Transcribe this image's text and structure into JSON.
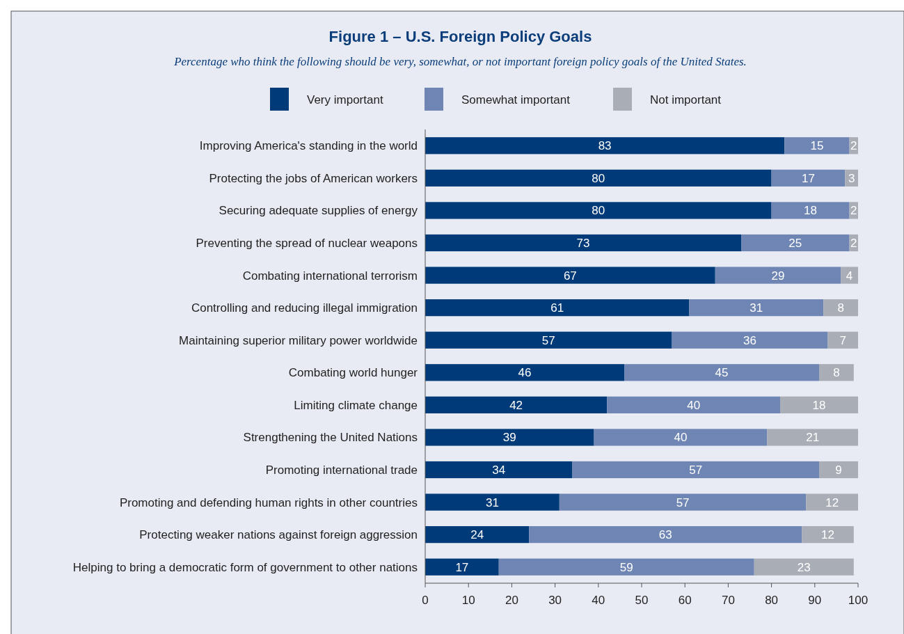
{
  "chart_data": {
    "type": "bar",
    "orientation": "horizontal",
    "stacked": true,
    "title": "Figure 1 – U.S. Foreign Policy Goals",
    "subtitle": "Percentage who think the following should be very, somewhat, or not important foreign policy goals of the United States.",
    "categories": [
      "Improving America's standing in the world",
      "Protecting the jobs of American workers",
      "Securing adequate supplies of energy",
      "Preventing the spread of nuclear weapons",
      "Combating international terrorism",
      "Controlling and reducing illegal immigration",
      "Maintaining superior military power worldwide",
      "Combating world hunger",
      "Limiting climate change",
      "Strengthening the United Nations",
      "Promoting international trade",
      "Promoting and defending human rights in other countries",
      "Protecting weaker nations against foreign aggression",
      "Helping to bring a democratic form of government to other nations"
    ],
    "series": [
      {
        "name": "Very important",
        "color": "#003a78",
        "values": [
          83,
          80,
          80,
          73,
          67,
          61,
          57,
          46,
          42,
          39,
          34,
          31,
          24,
          17
        ]
      },
      {
        "name": "Somewhat important",
        "color": "#6f86b4",
        "values": [
          15,
          17,
          18,
          25,
          29,
          31,
          36,
          45,
          40,
          40,
          57,
          57,
          63,
          59
        ]
      },
      {
        "name": "Not important",
        "color": "#a9adb6",
        "values": [
          2,
          3,
          2,
          2,
          4,
          8,
          7,
          8,
          18,
          21,
          9,
          12,
          12,
          23
        ]
      }
    ],
    "xlim": [
      0,
      100
    ],
    "xticks": [
      0,
      10,
      20,
      30,
      40,
      50,
      60,
      70,
      80,
      90,
      100
    ],
    "legend": "top",
    "data_labels": true,
    "grid": false
  }
}
